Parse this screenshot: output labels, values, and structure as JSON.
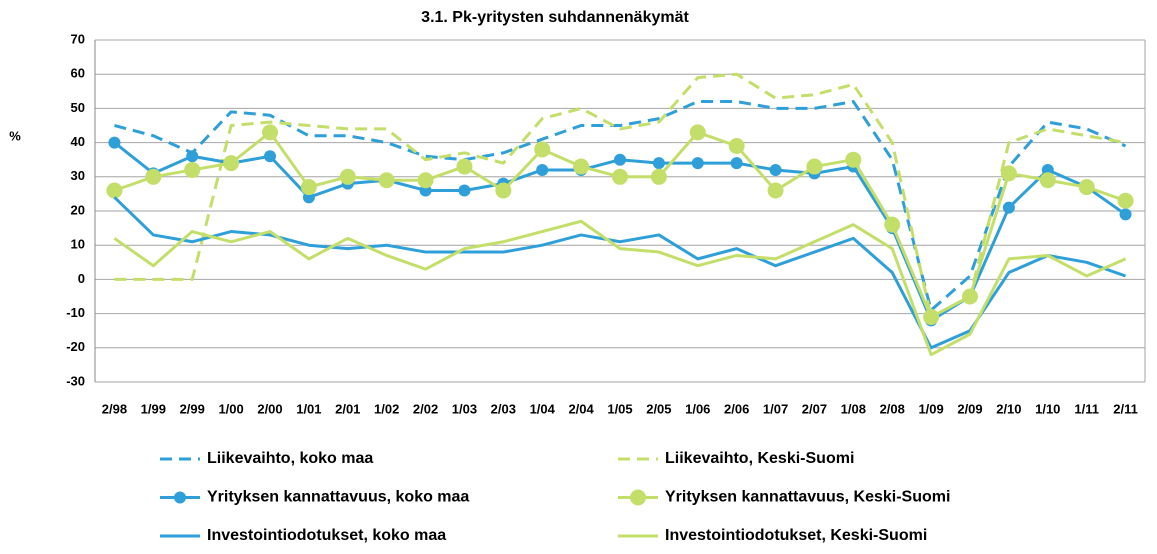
{
  "chart_data": {
    "type": "line",
    "title": "3.1. Pk-yritysten suhdannenäkymät",
    "ylabel": "%",
    "categories": [
      "2/98",
      "1/99",
      "2/99",
      "1/00",
      "2/00",
      "1/01",
      "2/01",
      "1/02",
      "2/02",
      "1/03",
      "2/03",
      "1/04",
      "2/04",
      "1/05",
      "2/05",
      "1/06",
      "2/06",
      "1/07",
      "2/07",
      "1/08",
      "2/08",
      "1/09",
      "2/09",
      "2/10",
      "1/10",
      "1/11",
      "2/11"
    ],
    "ylim": [
      -30,
      70
    ],
    "yticks": [
      -30,
      -20,
      -10,
      0,
      10,
      20,
      30,
      40,
      50,
      60,
      70
    ],
    "grid": true,
    "series": [
      {
        "name": "Liikevaihto, koko maa",
        "color": "#2e9fd8",
        "dash": true,
        "markers": false,
        "values": [
          45,
          42,
          37,
          49,
          48,
          42,
          42,
          40,
          36,
          35,
          37,
          41,
          45,
          45,
          47,
          52,
          52,
          50,
          50,
          52,
          35,
          -9,
          1,
          33,
          46,
          44,
          39
        ]
      },
      {
        "name": "Liikevaihto, Keski-Suomi",
        "color": "#c3df6a",
        "dash": true,
        "markers": false,
        "values": [
          0,
          0,
          0,
          45,
          46,
          45,
          44,
          44,
          35,
          37,
          34,
          47,
          50,
          44,
          46,
          59,
          60,
          53,
          54,
          57,
          40,
          -11,
          -5,
          40,
          44,
          42,
          40
        ]
      },
      {
        "name": "Yrityksen kannattavuus, koko maa",
        "color": "#2e9fd8",
        "dash": false,
        "markers": true,
        "values": [
          40,
          31,
          36,
          34,
          36,
          24,
          28,
          29,
          26,
          26,
          28,
          32,
          32,
          35,
          34,
          34,
          34,
          32,
          31,
          33,
          15,
          -12,
          -5,
          21,
          32,
          27,
          19
        ]
      },
      {
        "name": "Yrityksen kannattavuus, Keski-Suomi",
        "color": "#c3df6a",
        "dash": false,
        "markers": true,
        "values": [
          26,
          30,
          32,
          34,
          43,
          27,
          30,
          29,
          29,
          33,
          26,
          38,
          33,
          30,
          30,
          43,
          39,
          26,
          33,
          35,
          16,
          -11,
          -5,
          31,
          29,
          27,
          23
        ]
      },
      {
        "name": "Investointiodotukset, koko maa",
        "color": "#2e9fd8",
        "dash": false,
        "markers": false,
        "values": [
          24,
          13,
          11,
          14,
          13,
          10,
          9,
          10,
          8,
          8,
          8,
          10,
          13,
          11,
          13,
          6,
          9,
          4,
          8,
          12,
          2,
          -20,
          -15,
          2,
          7,
          5,
          1
        ]
      },
      {
        "name": "Investointiodotukset, Keski-Suomi",
        "color": "#c3df6a",
        "dash": false,
        "markers": false,
        "values": [
          12,
          4,
          14,
          11,
          14,
          6,
          12,
          7,
          3,
          9,
          11,
          14,
          17,
          9,
          8,
          4,
          7,
          6,
          11,
          16,
          9,
          -22,
          -16,
          6,
          7,
          1,
          6
        ]
      }
    ]
  }
}
